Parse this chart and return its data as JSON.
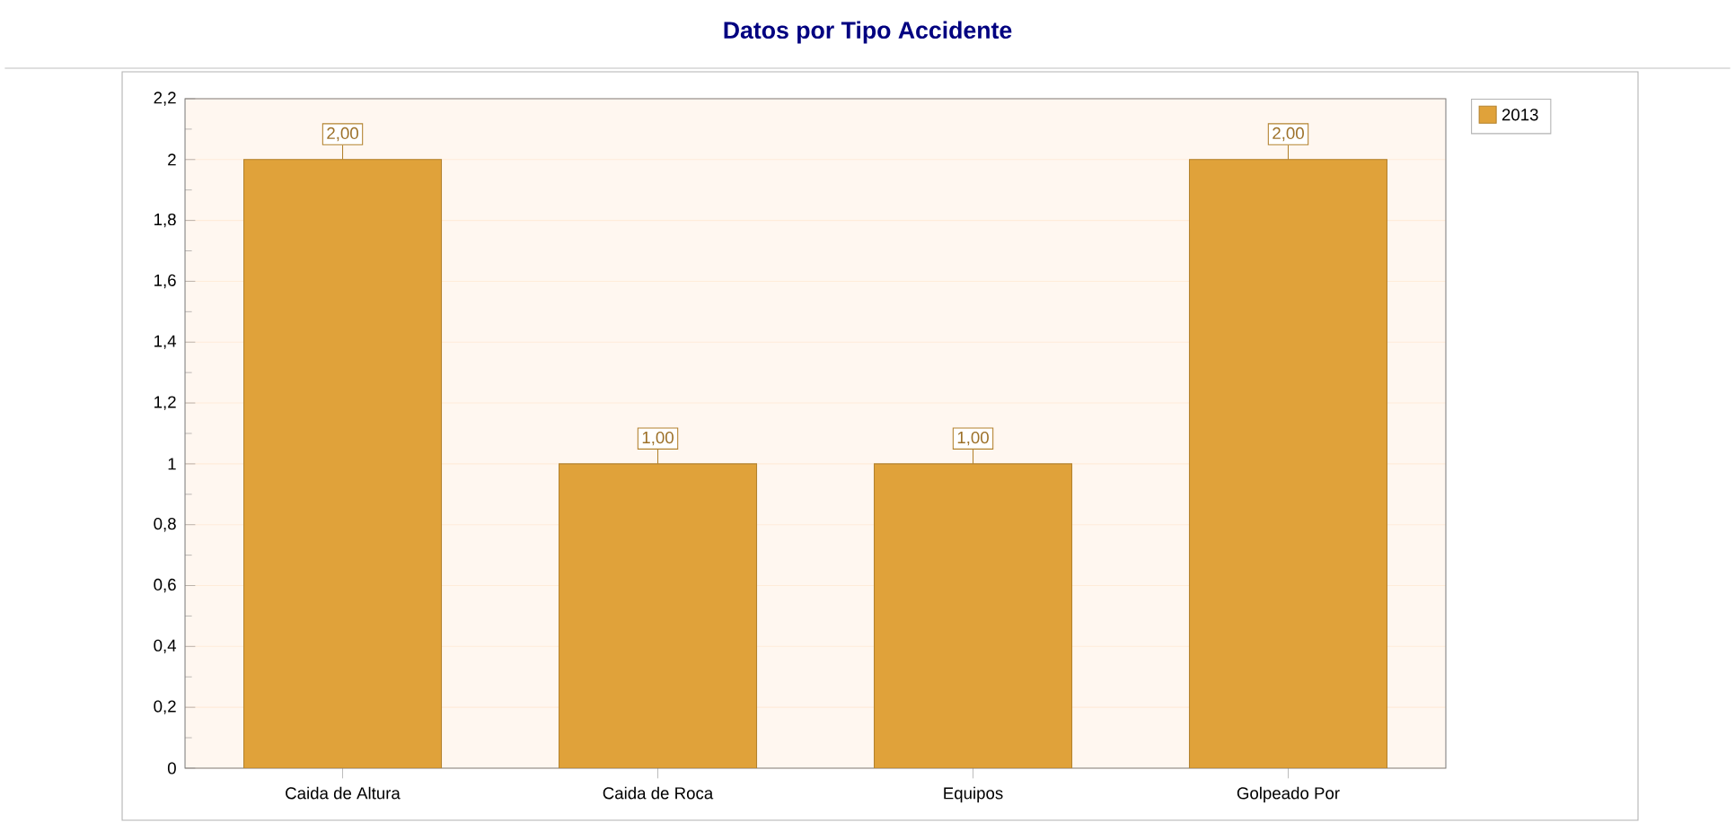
{
  "chart_data": {
    "type": "bar",
    "title": "Datos por Tipo Accidente",
    "categories": [
      "Caida de Altura",
      "Caida de Roca",
      "Equipos",
      "Golpeado Por"
    ],
    "series": [
      {
        "name": "2013",
        "color": "#e0a23a",
        "values": [
          2,
          1,
          1,
          2
        ],
        "value_labels": [
          "2,00",
          "1,00",
          "1,00",
          "2,00"
        ]
      }
    ],
    "ylim": [
      0,
      2.2
    ],
    "yticks": [
      0,
      {
        "value": 0.2,
        "label": "0,2"
      },
      {
        "value": 0.4,
        "label": "0,4"
      },
      {
        "value": 0.6,
        "label": "0,6"
      },
      {
        "value": 0.8,
        "label": "0,8"
      },
      1,
      {
        "value": 1.2,
        "label": "1,2"
      },
      {
        "value": 1.4,
        "label": "1,4"
      },
      {
        "value": 1.6,
        "label": "1,6"
      },
      {
        "value": 1.8,
        "label": "1,8"
      },
      2,
      {
        "value": 2.2,
        "label": "2,2"
      }
    ],
    "grid": "y",
    "legend": "top right"
  }
}
